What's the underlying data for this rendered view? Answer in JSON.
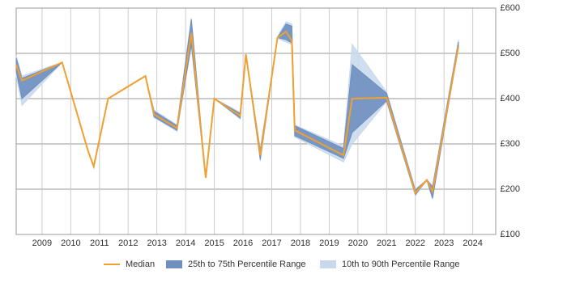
{
  "chart_data": {
    "type": "line",
    "x": [
      2008.1,
      2008.3,
      2009.7,
      2010.6,
      2010.8,
      2011.3,
      2012.6,
      2012.9,
      2013.7,
      2014.2,
      2014.7,
      2015.0,
      2015.9,
      2016.1,
      2016.6,
      2017.2,
      2017.5,
      2017.7,
      2017.8,
      2019.5,
      2019.8,
      2021.0,
      2022.0,
      2022.4,
      2022.6,
      2023.5
    ],
    "series": [
      {
        "name": "Median",
        "color": "#f0a030",
        "values": [
          475,
          440,
          480,
          285,
          250,
          400,
          450,
          365,
          335,
          545,
          225,
          400,
          362,
          498,
          275,
          535,
          548,
          528,
          330,
          275,
          400,
          402,
          192,
          220,
          195,
          515
        ]
      },
      {
        "name": "25th to 75th Percentile Range",
        "color": "#6f8fbf",
        "low": [
          460,
          400,
          480,
          285,
          250,
          400,
          450,
          360,
          330,
          520,
          225,
          400,
          357,
          498,
          265,
          535,
          530,
          523,
          318,
          268,
          325,
          395,
          188,
          220,
          180,
          515
        ],
        "high": [
          490,
          445,
          480,
          285,
          250,
          400,
          450,
          372,
          340,
          575,
          225,
          400,
          367,
          498,
          285,
          535,
          565,
          560,
          340,
          290,
          475,
          412,
          198,
          220,
          205,
          525
        ]
      },
      {
        "name": "10th to 90th Percentile Range",
        "color": "#c8d9ec",
        "low": [
          450,
          385,
          480,
          285,
          250,
          400,
          450,
          358,
          328,
          515,
          225,
          400,
          355,
          498,
          262,
          533,
          525,
          520,
          315,
          260,
          300,
          393,
          185,
          220,
          178,
          512
        ],
        "high": [
          495,
          450,
          480,
          285,
          250,
          400,
          450,
          375,
          342,
          578,
          225,
          400,
          370,
          498,
          288,
          537,
          570,
          565,
          342,
          295,
          520,
          415,
          200,
          222,
          208,
          530
        ]
      }
    ],
    "xlim": [
      2008.1,
      2024.8
    ],
    "xticks": [
      2009,
      2010,
      2011,
      2012,
      2013,
      2014,
      2015,
      2016,
      2017,
      2018,
      2019,
      2020,
      2021,
      2022,
      2023,
      2024
    ],
    "ylim": [
      100,
      600
    ],
    "yticks": [
      {
        "value": 100,
        "label": "£100"
      },
      {
        "value": 200,
        "label": "£200"
      },
      {
        "value": 300,
        "label": "£300"
      },
      {
        "value": 400,
        "label": "£400"
      },
      {
        "value": 500,
        "label": "£500"
      },
      {
        "value": 600,
        "label": "£600"
      }
    ],
    "grid": true,
    "legend": "bottom"
  }
}
